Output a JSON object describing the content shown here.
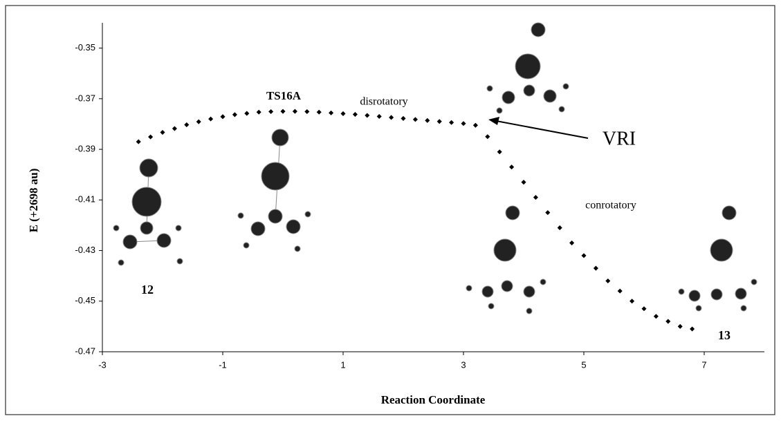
{
  "chart_data": {
    "type": "scatter",
    "x_label": "Reaction Coordinate",
    "y_label": "E (+2698 au)",
    "xlim": [
      -3,
      8
    ],
    "xticks": [
      -3,
      -1,
      1,
      3,
      5,
      7
    ],
    "ylim": [
      -0.47,
      -0.34
    ],
    "yticks": [
      -0.47,
      -0.45,
      -0.43,
      -0.41,
      -0.39,
      -0.37,
      -0.35
    ],
    "series": [
      {
        "color": "#000000",
        "x": [
          -2.4,
          -2.2,
          -2.0,
          -1.8,
          -1.6,
          -1.4,
          -1.2,
          -1.0,
          -0.8,
          -0.6,
          -0.4,
          -0.2,
          0,
          0.2,
          0.4,
          0.6,
          0.8,
          1.0,
          1.2,
          1.4,
          1.6,
          1.8,
          2.0,
          2.2,
          2.4,
          2.6,
          2.8,
          3.0,
          3.2
        ],
        "values": [
          -0.387,
          -0.3851,
          -0.3833,
          -0.3818,
          -0.3803,
          -0.3791,
          -0.378,
          -0.3771,
          -0.3763,
          -0.3758,
          -0.3753,
          -0.3751,
          -0.375,
          -0.375,
          -0.3751,
          -0.3753,
          -0.3756,
          -0.3759,
          -0.3762,
          -0.3766,
          -0.377,
          -0.3774,
          -0.3778,
          -0.3782,
          -0.3786,
          -0.379,
          -0.3794,
          -0.3798,
          -0.3805
        ]
      },
      {
        "color": "#000000",
        "x": [
          3.4,
          3.6,
          3.8,
          4.0,
          4.2,
          4.4,
          4.6,
          4.8,
          5.0,
          5.2,
          5.4,
          5.6,
          5.8,
          6.0,
          6.2,
          6.4,
          6.6,
          6.8
        ],
        "values": [
          -0.385,
          -0.391,
          -0.397,
          -0.403,
          -0.409,
          -0.415,
          -0.421,
          -0.427,
          -0.432,
          -0.437,
          -0.442,
          -0.446,
          -0.45,
          -0.453,
          -0.456,
          -0.458,
          -0.46,
          -0.461
        ]
      }
    ],
    "annotations": [
      "TS16A",
      "disrotatory",
      "VRI",
      "conrotatory",
      "12",
      "13"
    ]
  }
}
